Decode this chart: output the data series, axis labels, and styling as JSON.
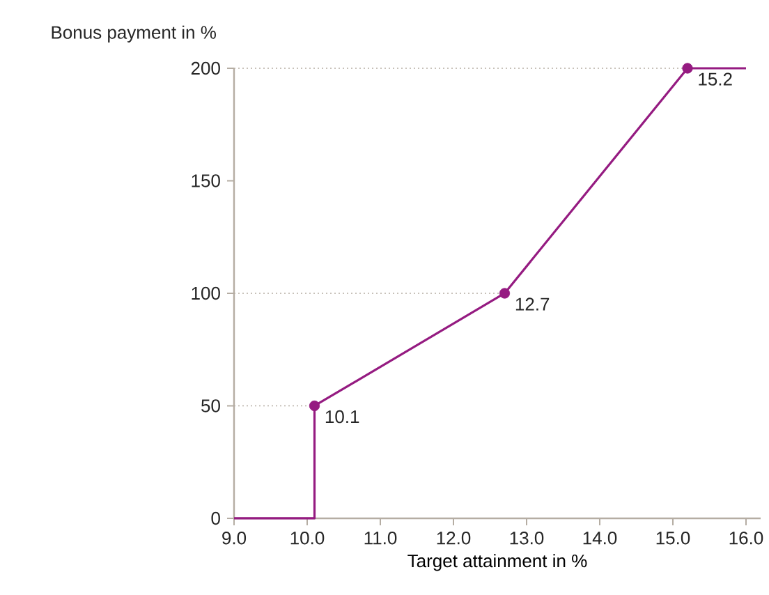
{
  "chart_data": {
    "type": "line",
    "xlabel": "Target attainment in %",
    "ylabel": "Bonus payment in %",
    "xlim": [
      9,
      16.2
    ],
    "ylim": [
      0,
      200
    ],
    "xticks": [
      {
        "value": 9,
        "label": "9.0"
      },
      {
        "value": 10,
        "label": "10.0"
      },
      {
        "value": 11,
        "label": "11.0"
      },
      {
        "value": 12,
        "label": "12.0"
      },
      {
        "value": 13,
        "label": "13.0"
      },
      {
        "value": 14,
        "label": "14.0"
      },
      {
        "value": 15,
        "label": "15.0"
      },
      {
        "value": 16,
        "label": "16.0"
      }
    ],
    "yticks": [
      0,
      50,
      100,
      150,
      200
    ],
    "annotations": [
      {
        "text": "10.1",
        "x": 10.1,
        "y": 50
      },
      {
        "text": "12.7",
        "x": 12.7,
        "y": 100
      },
      {
        "text": "15.2",
        "x": 15.2,
        "y": 200
      }
    ],
    "series": [
      {
        "color": "#b5ada3",
        "line_style": "dotted",
        "x": [
          9,
          10.1
        ],
        "values": [
          50,
          50
        ]
      },
      {
        "color": "#b5ada3",
        "line_style": "dotted",
        "x": [
          9,
          12.7
        ],
        "values": [
          100,
          100
        ]
      },
      {
        "color": "#b5ada3",
        "line_style": "dotted",
        "x": [
          9,
          16
        ],
        "values": [
          200,
          200
        ]
      },
      {
        "color": "#951b81",
        "line_style": "solid",
        "x": [
          9,
          10.1,
          10.1,
          12.7,
          15.2,
          16
        ],
        "values": [
          0,
          0,
          50,
          100,
          200,
          200
        ]
      },
      {
        "type": "scatter",
        "color": "#951b81",
        "marker": "circle",
        "x": [
          10.1,
          12.7,
          15.2
        ],
        "values": [
          50,
          100,
          200
        ]
      }
    ]
  }
}
